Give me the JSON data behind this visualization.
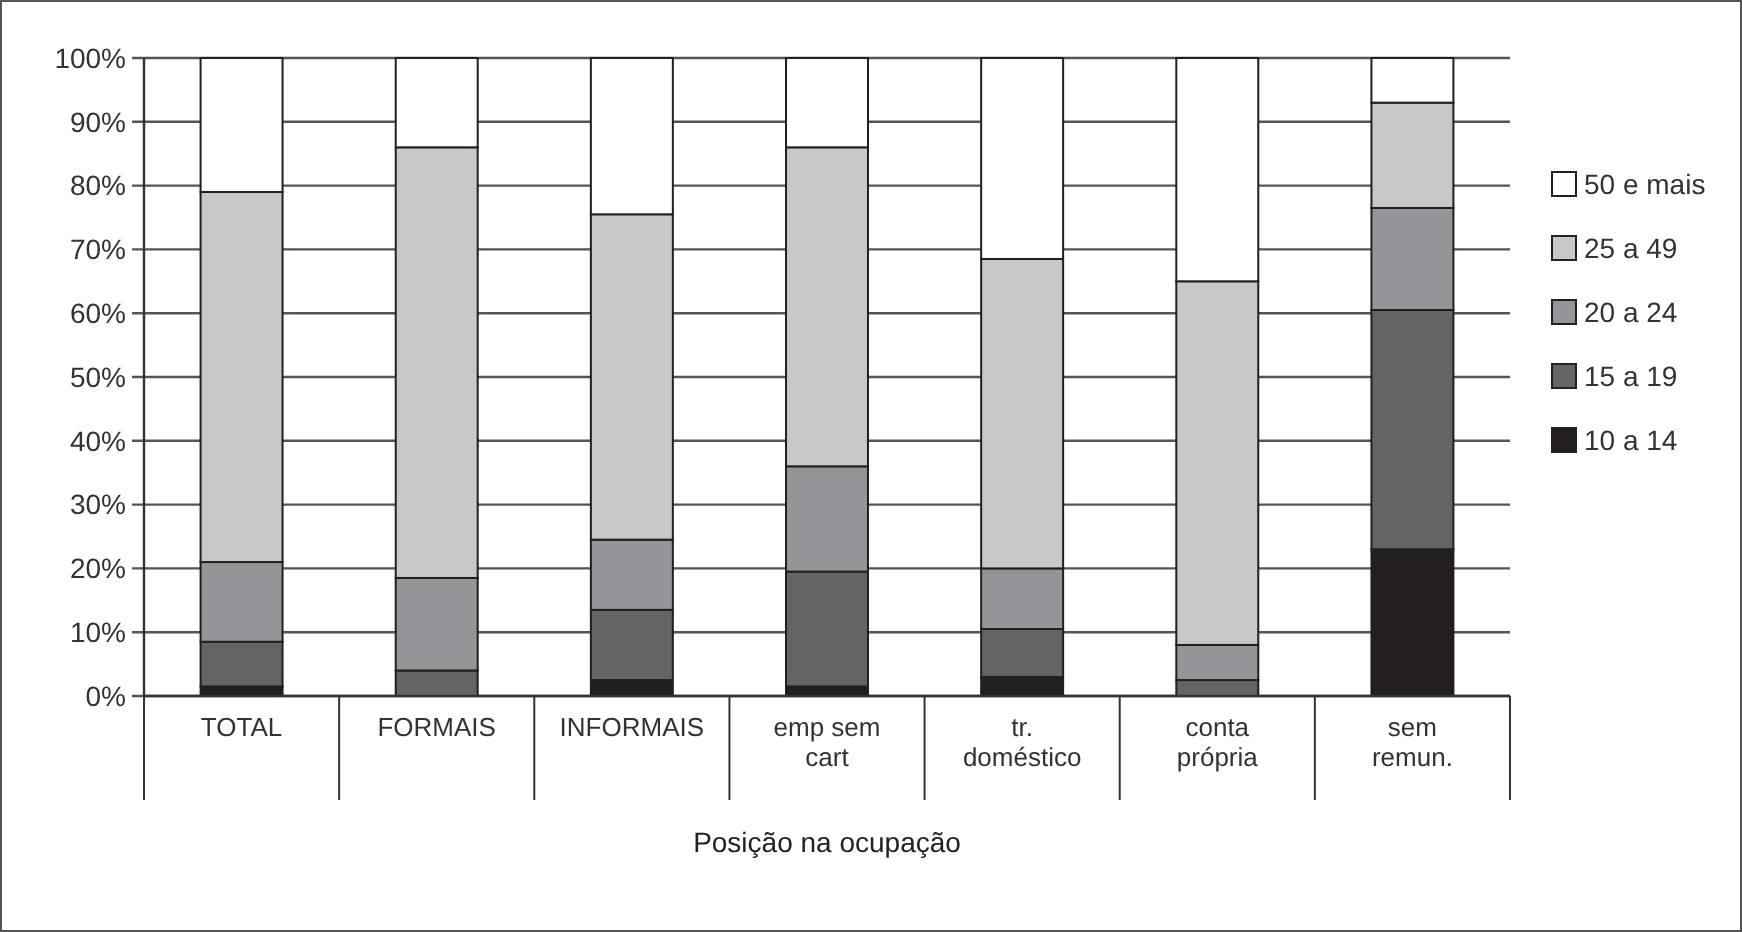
{
  "chart_data": {
    "type": "bar",
    "stacked": true,
    "xlabel": "Posição na ocupação",
    "categories": [
      "TOTAL",
      "FORMAIS",
      "INFORMAIS",
      "emp sem\ncart",
      "tr.\ndoméstico",
      "conta\nprópria",
      "sem\nremun."
    ],
    "series": [
      {
        "name": "10 a 14",
        "color": "#231f20",
        "values": [
          1.5,
          null,
          2.5,
          1.5,
          3,
          null,
          23
        ]
      },
      {
        "name": "15 a 19",
        "color": "#636466",
        "values": [
          7,
          4,
          11,
          18,
          7.5,
          2.5,
          37.5
        ]
      },
      {
        "name": "20 a 24",
        "color": "#939598",
        "values": [
          12.5,
          14.5,
          11,
          16.5,
          9.5,
          5.5,
          16
        ]
      },
      {
        "name": "25 a 49",
        "color": "#c7c8ca",
        "values": [
          58,
          67.5,
          51,
          50,
          48.5,
          57,
          16.5
        ]
      },
      {
        "name": "50 e mais",
        "color": "#ffffff",
        "values": [
          21,
          14,
          24.5,
          14,
          31.5,
          35,
          7
        ]
      }
    ],
    "ylim": [
      0,
      100
    ],
    "yticks": [
      {
        "value": 0,
        "label": "0%"
      },
      {
        "value": 10,
        "label": "10%"
      },
      {
        "value": 20,
        "label": "20%"
      },
      {
        "value": 30,
        "label": "30%"
      },
      {
        "value": 40,
        "label": "40%"
      },
      {
        "value": 50,
        "label": "50%"
      },
      {
        "value": 60,
        "label": "60%"
      },
      {
        "value": 70,
        "label": "70%"
      },
      {
        "value": 80,
        "label": "80%"
      },
      {
        "value": 90,
        "label": "90%"
      },
      {
        "value": 100,
        "label": "100%"
      }
    ],
    "grid": "y",
    "legend": "right"
  }
}
